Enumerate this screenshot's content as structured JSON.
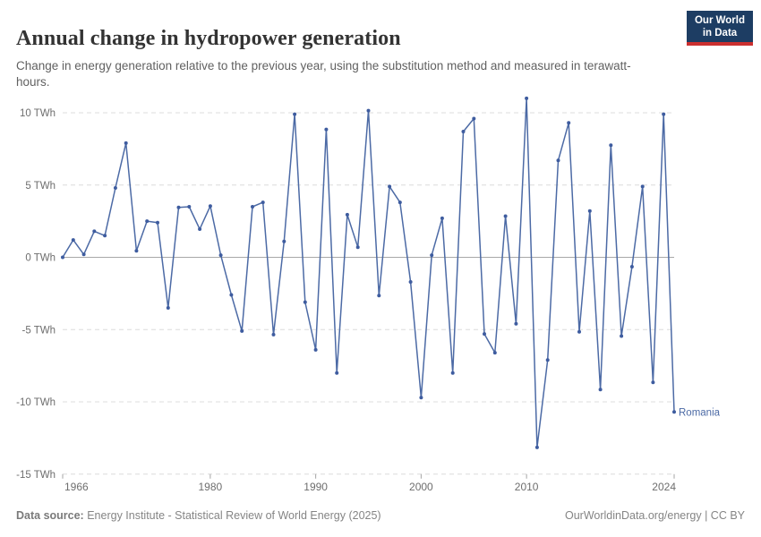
{
  "header": {
    "title": "Annual change in hydropower generation",
    "subtitle": "Change in energy generation relative to the previous year, using the substitution method and measured in terawatt-hours."
  },
  "logo": {
    "line1": "Our World",
    "line2": "in Data",
    "bg_color": "#1d3d63",
    "accent_color": "#cb2f2f"
  },
  "chart_data": {
    "type": "line",
    "title": "Annual change in hydropower generation",
    "unit": "TWh",
    "grid": "horizontal-dashed",
    "legend_position": "end-of-line-label",
    "xlabel": "",
    "ylabel": "",
    "ylim": [
      -15,
      11.5
    ],
    "xlim": [
      1966,
      2024
    ],
    "x_ticks": [
      1966,
      1980,
      1990,
      2000,
      2010,
      2024
    ],
    "y_ticks": [
      10,
      5,
      0,
      -5,
      -10,
      -15
    ],
    "y_tick_labels": [
      "10 TWh",
      "5 TWh",
      "0 TWh",
      "-5 TWh",
      "-10 TWh",
      "-15 TWh"
    ],
    "colors": {
      "series": "#4c6aa5",
      "marker": "#3e5c9f",
      "gridline": "#dcdcdc",
      "zero_line": "#a8a8a8",
      "axis_text": "#6e6e6e",
      "tick_mark": "#a5a5a5"
    },
    "series": [
      {
        "name": "Romania",
        "color": "#4c6aa5",
        "x": [
          1966,
          1967,
          1968,
          1969,
          1970,
          1971,
          1972,
          1973,
          1974,
          1975,
          1976,
          1977,
          1978,
          1979,
          1980,
          1981,
          1982,
          1983,
          1984,
          1985,
          1986,
          1987,
          1988,
          1989,
          1990,
          1991,
          1992,
          1993,
          1994,
          1995,
          1996,
          1997,
          1998,
          1999,
          2000,
          2001,
          2002,
          2003,
          2004,
          2005,
          2006,
          2007,
          2008,
          2009,
          2010,
          2011,
          2012,
          2013,
          2014,
          2015,
          2016,
          2017,
          2018,
          2019,
          2020,
          2021,
          2022,
          2023,
          2024
        ],
        "values": [
          0,
          1.2,
          0.2,
          1.8,
          1.5,
          4.8,
          7.9,
          0.45,
          2.5,
          2.4,
          -3.5,
          3.45,
          3.5,
          1.95,
          3.55,
          0.15,
          -2.6,
          -5.1,
          3.5,
          3.8,
          -5.35,
          1.1,
          9.9,
          -3.1,
          -6.4,
          8.85,
          -8.0,
          2.95,
          0.7,
          10.15,
          -2.65,
          4.9,
          3.8,
          -1.7,
          -9.7,
          0.15,
          2.7,
          -8.0,
          8.7,
          9.6,
          -5.3,
          -6.6,
          2.85,
          -4.6,
          11.0,
          -13.15,
          -7.1,
          6.7,
          9.3,
          -5.15,
          3.2,
          -9.15,
          7.75,
          -5.45,
          -0.65,
          4.9,
          -8.65,
          9.9,
          -10.7
        ]
      }
    ]
  },
  "footer": {
    "datasource_label": "Data source:",
    "datasource_text": " Energy Institute - Statistical Review of World Energy (2025)",
    "right_text": "OurWorldinData.org/energy | CC BY"
  }
}
